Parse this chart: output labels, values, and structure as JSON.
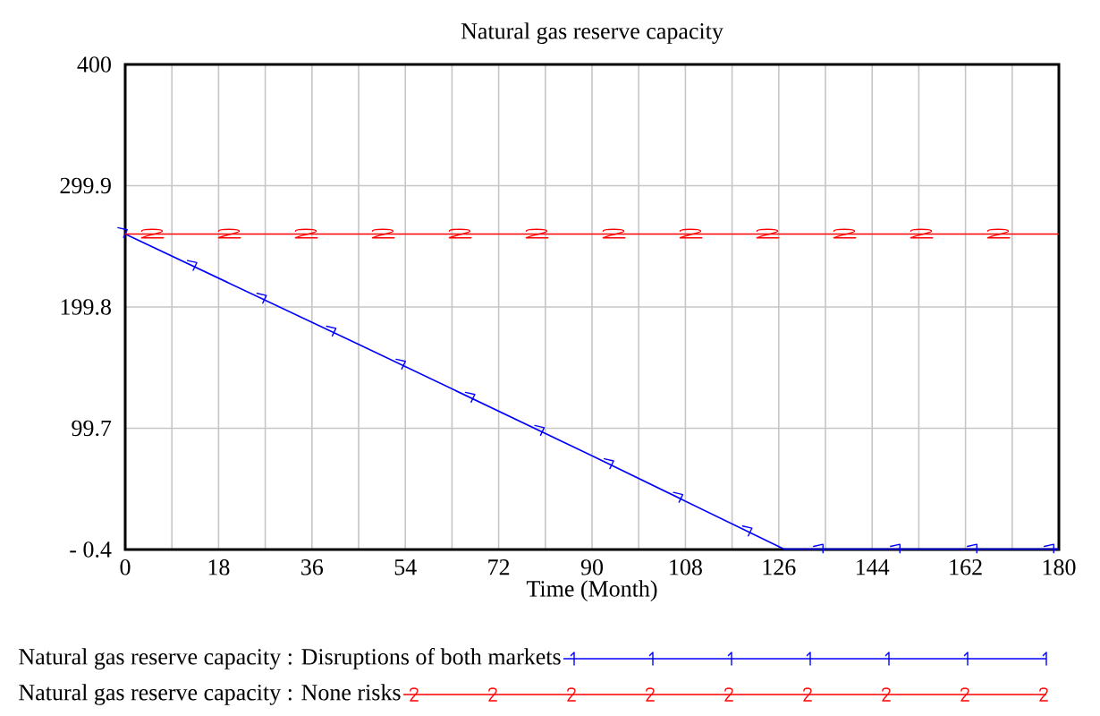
{
  "chart_data": {
    "type": "line",
    "title": "Natural gas reserve capacity",
    "xlabel": "Time (Month)",
    "xlim": [
      0,
      180
    ],
    "xticks": [
      0,
      18,
      36,
      54,
      72,
      90,
      108,
      126,
      144,
      162,
      180
    ],
    "ylim": [
      -0.4,
      400
    ],
    "yticks": [
      {
        "value": -0.4,
        "label": "- 0.4"
      },
      99.7,
      199.8,
      299.9,
      400
    ],
    "grid": true,
    "legend": "bottom",
    "series": [
      {
        "name": "Natural gas reserve capacity : Disruptions of both markets",
        "color": "#0000ff",
        "x": [
          0,
          45,
          90,
          127,
          180
        ],
        "values": [
          260,
          169,
          77,
          0,
          0
        ]
      },
      {
        "name": "Natural gas reserve capacity : None risks",
        "color": "#ff0000",
        "x": [
          0,
          180
        ],
        "values": [
          260,
          260
        ]
      }
    ]
  }
}
